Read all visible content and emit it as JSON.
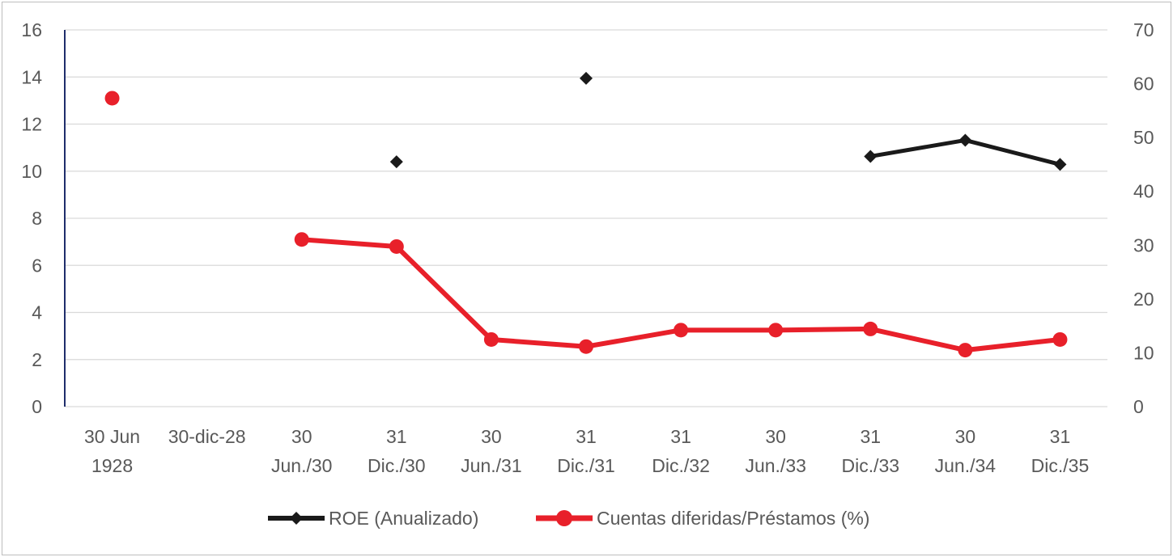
{
  "chart_data": {
    "type": "line",
    "categories": [
      [
        "30 Jun",
        "1928"
      ],
      [
        "30-dic-28"
      ],
      [
        "30",
        "Jun./30"
      ],
      [
        "31",
        "Dic./30"
      ],
      [
        "30",
        "Jun./31"
      ],
      [
        "31",
        "Dic./31"
      ],
      [
        "31",
        "Dic./32"
      ],
      [
        "30",
        "Jun./33"
      ],
      [
        "31",
        "Dic./33"
      ],
      [
        "30",
        "Jun./34"
      ],
      [
        "31",
        "Dic./35"
      ]
    ],
    "left_axis": {
      "min": 0,
      "max": 16,
      "ticks": [
        0,
        2,
        4,
        6,
        8,
        10,
        12,
        14,
        16
      ]
    },
    "right_axis": {
      "min": 0,
      "max": 70,
      "ticks": [
        0,
        10,
        20,
        30,
        40,
        50,
        60,
        70
      ]
    },
    "grid": true,
    "legend_position": "bottom",
    "series": [
      {
        "name": "ROE (Anualizado)",
        "axis": "right",
        "color": "#1a1a1a",
        "marker": "diamond",
        "values": [
          null,
          null,
          null,
          45.5,
          null,
          61,
          null,
          null,
          46.5,
          49.5,
          45
        ]
      },
      {
        "name": "Cuentas diferidas/Préstamos (%)",
        "axis": "left",
        "color": "#e8202a",
        "marker": "circle",
        "values": [
          13.1,
          null,
          7.1,
          6.8,
          2.85,
          2.55,
          3.25,
          3.25,
          3.3,
          2.4,
          2.85
        ]
      }
    ]
  }
}
